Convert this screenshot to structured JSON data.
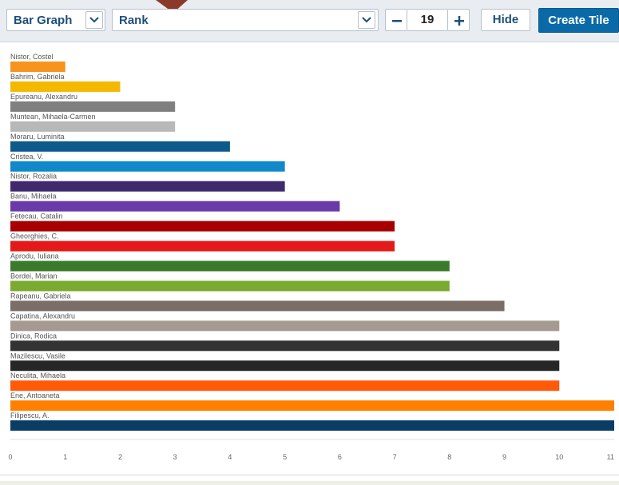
{
  "toolbar": {
    "chart_type": "Bar Graph",
    "metric": "Rank",
    "count": "19",
    "hide_label": "Hide",
    "create_label": "Create Tile"
  },
  "icons": {
    "chart_type_dropdown": "chevron-down-icon",
    "metric_dropdown": "chevron-down-icon",
    "decrement": "minus-icon",
    "increment": "plus-icon"
  },
  "colors": {
    "primary_button": "#0a6aa7",
    "accent_text": "#1d4f7a"
  },
  "chart_data": {
    "type": "bar",
    "orientation": "horizontal",
    "categories": [
      "Nistor, Costel",
      "Bahrim, Gabriela",
      "Epureanu, Alexandru",
      "Muntean, Mihaela-Carmen",
      "Moraru, Luminita",
      "Cristea, V.",
      "Nistor, Rozalia",
      "Banu, Mihaela",
      "Fetecau, Catalin",
      "Gheorghies, C.",
      "Aprodu, Iuliana",
      "Bordei, Marian",
      "Rapeanu, Gabriela",
      "Capatina, Alexandru",
      "Dinica, Rodica",
      "Mazilescu, Vasile",
      "Neculita, Mihaela",
      "Ene, Antoaneta",
      "Filipescu, A."
    ],
    "values": [
      1,
      2,
      3,
      3,
      4,
      5,
      5,
      6,
      7,
      7,
      8,
      8,
      9,
      10,
      10,
      10,
      10,
      11,
      11
    ],
    "colors": [
      "#f7941d",
      "#f5b800",
      "#7f7f7f",
      "#b8b8b8",
      "#0e5a8a",
      "#1188c9",
      "#3f2a6e",
      "#6a3ba8",
      "#a80000",
      "#e41a1a",
      "#3a7a2a",
      "#7aaa30",
      "#7a6e66",
      "#a49a92",
      "#333333",
      "#262626",
      "#ff5a0a",
      "#ff8000",
      "#0a3c66"
    ],
    "xlim": [
      0,
      11
    ],
    "xticks": [
      0,
      1,
      2,
      3,
      4,
      5,
      6,
      7,
      8,
      9,
      10,
      11
    ],
    "grid": false,
    "legend": "none"
  }
}
